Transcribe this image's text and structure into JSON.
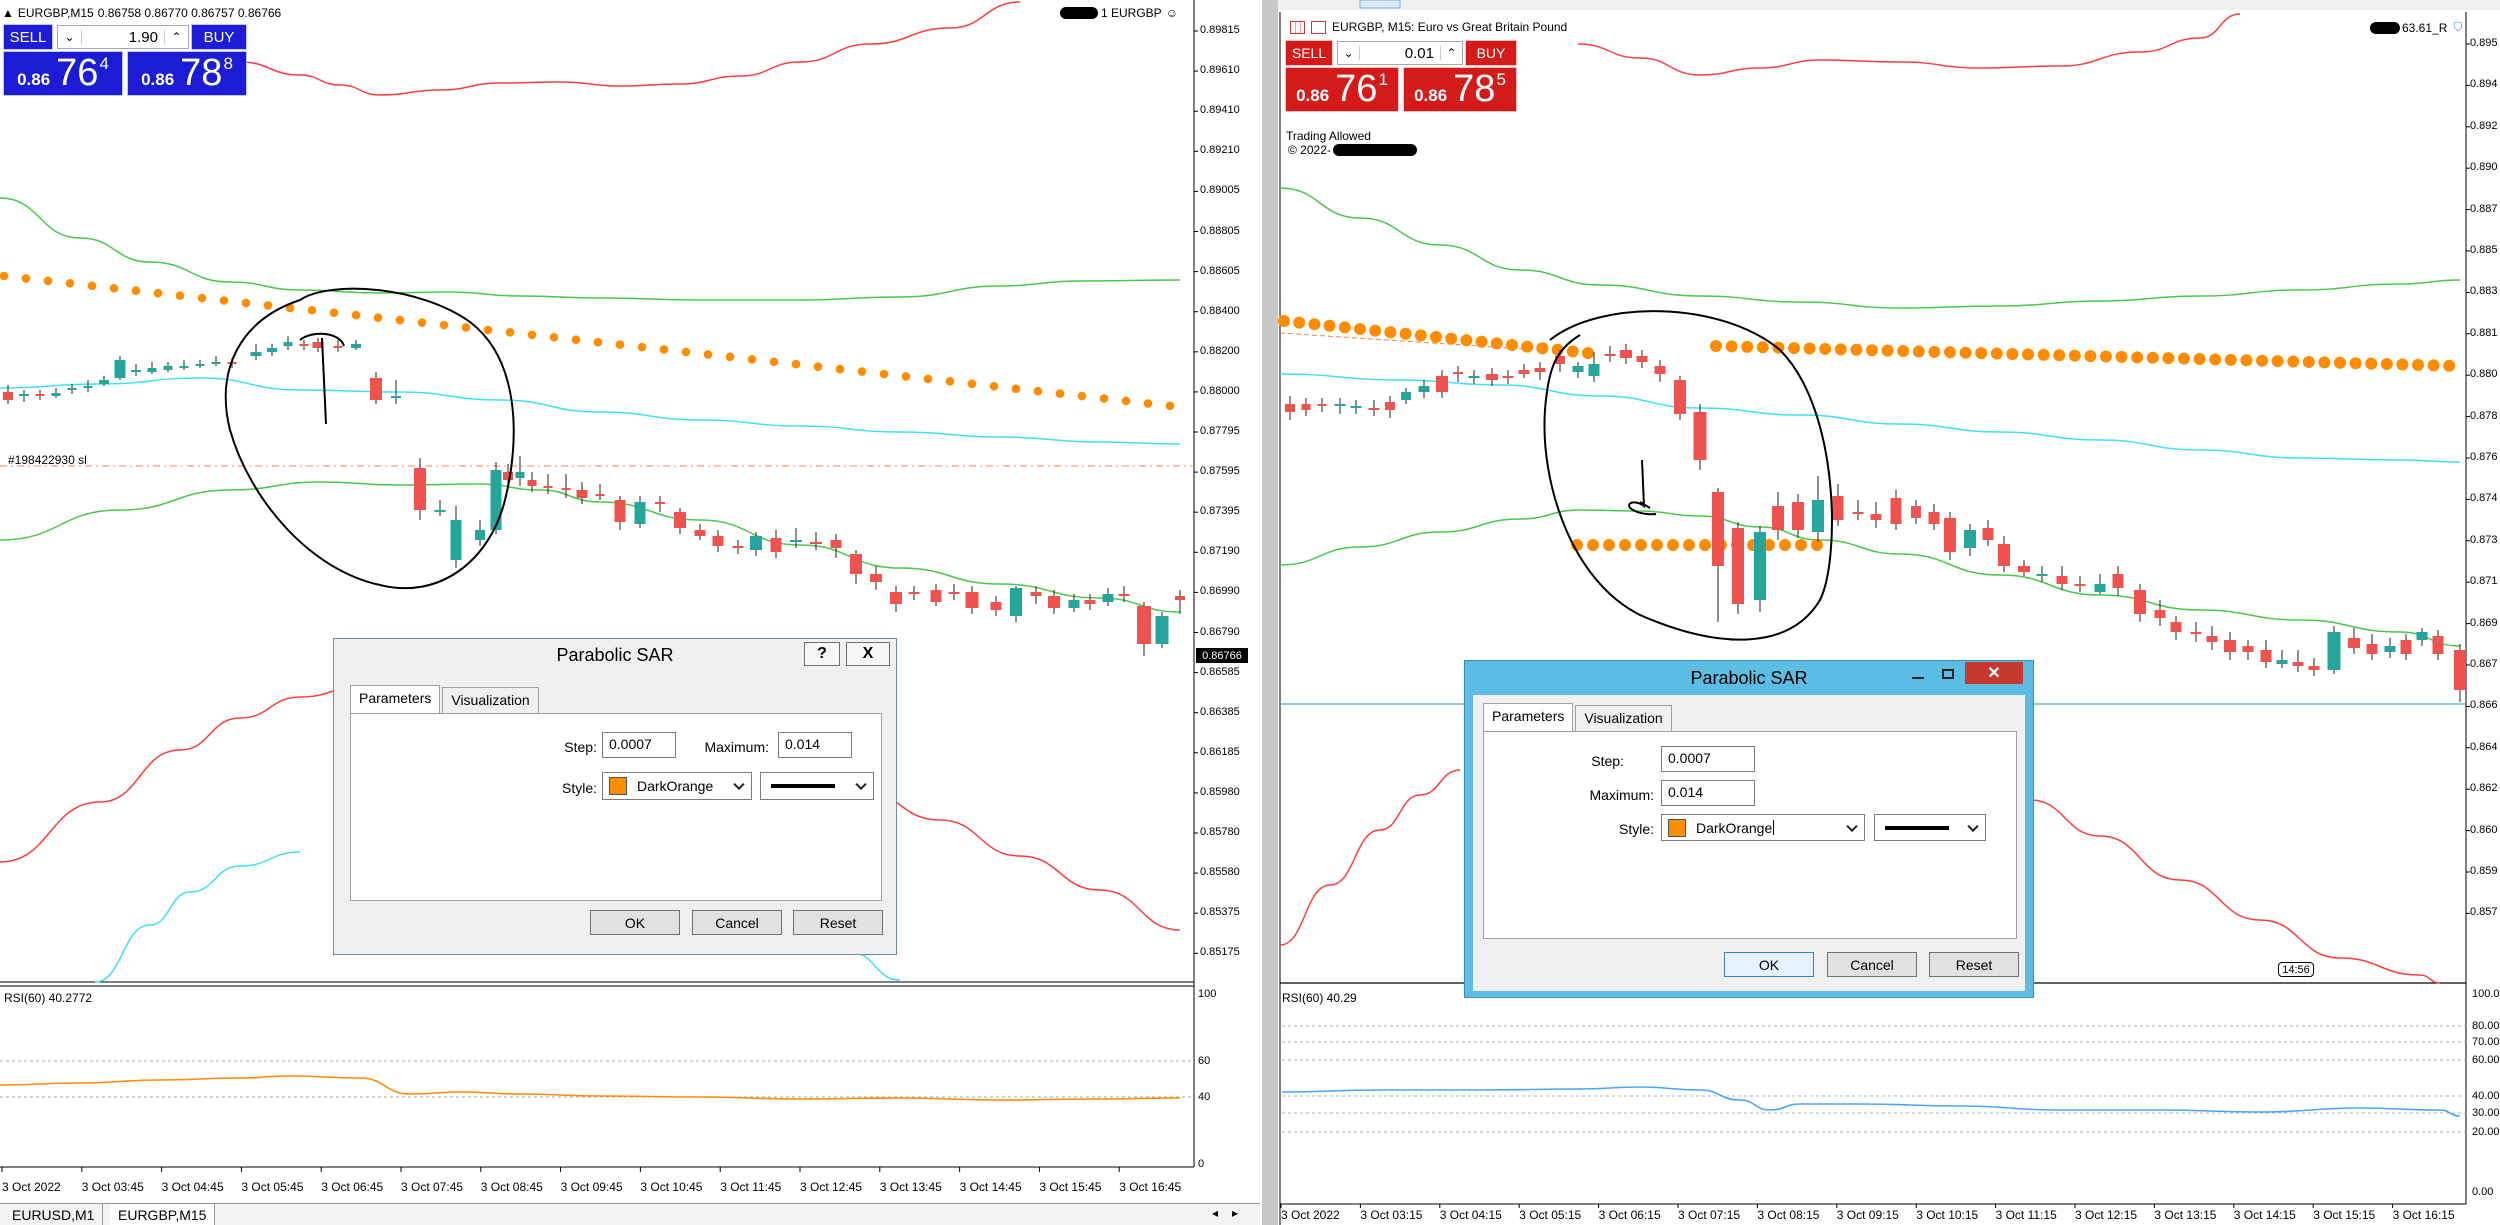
{
  "left": {
    "symbol": "EURGBP,M15",
    "ohlc": "0.86758 0.86770 0.86757 0.86766",
    "account_tag": "1 EURGBP",
    "trade_panel": {
      "sell_label": "SELL",
      "buy_label": "BUY",
      "lot": "1.90",
      "sell_price": {
        "small": "0.86",
        "big": "76",
        "pip": "4"
      },
      "buy_price": {
        "small": "0.86",
        "big": "78",
        "pip": "8"
      },
      "colors": {
        "button": "#1c1cd6"
      }
    },
    "order_label": "#198422930 sl",
    "current_price_label": "0.86766",
    "price_axis": [
      "0.89815",
      "0.89610",
      "0.89410",
      "0.89210",
      "0.89005",
      "0.88805",
      "0.88605",
      "0.88400",
      "0.88200",
      "0.88000",
      "0.87795",
      "0.87595",
      "0.87395",
      "0.87190",
      "0.86990",
      "0.86790",
      "0.86585",
      "0.86385",
      "0.86185",
      "0.85980",
      "0.85780",
      "0.85580",
      "0.85375",
      "0.85175"
    ],
    "indicator": {
      "label": "RSI(60) 40.2772",
      "levels": [
        "100",
        "60",
        "40",
        "0"
      ],
      "color": "#ff8c00"
    },
    "time_axis": [
      "3 Oct 2022",
      "3 Oct 03:45",
      "3 Oct 04:45",
      "3 Oct 05:45",
      "3 Oct 06:45",
      "3 Oct 07:45",
      "3 Oct 08:45",
      "3 Oct 09:45",
      "3 Oct 10:45",
      "3 Oct 11:45",
      "3 Oct 12:45",
      "3 Oct 13:45",
      "3 Oct 14:45",
      "3 Oct 15:45",
      "3 Oct 16:45"
    ],
    "dialog": {
      "title": "Parabolic SAR",
      "help": "?",
      "close": "X",
      "tabs": [
        "Parameters",
        "Visualization"
      ],
      "step_label": "Step:",
      "step_value": "0.0007",
      "maximum_label": "Maximum:",
      "maximum_value": "0.014",
      "style_label": "Style:",
      "style_color_name": "DarkOrange",
      "ok": "OK",
      "cancel": "Cancel",
      "reset": "Reset"
    },
    "bottom_tabs": [
      "EURUSD,M1",
      "EURGBP,M15"
    ]
  },
  "right": {
    "symbol": "EURGBP, M15:  Euro vs Great Britain Pound",
    "account_tag": "63.61_R",
    "trade_panel": {
      "sell_label": "SELL",
      "buy_label": "BUY",
      "lot": "0.01",
      "sell_price": {
        "small": "0.86",
        "big": "76",
        "pip": "1"
      },
      "buy_price": {
        "small": "0.86",
        "big": "78",
        "pip": "5"
      },
      "colors": {
        "button": "#d51a1a"
      }
    },
    "status_lines": [
      "Trading Allowed",
      "© 2022-"
    ],
    "price_axis": [
      "0.895",
      "0.894",
      "0.892",
      "0.890",
      "0.887",
      "0.885",
      "0.883",
      "0.881",
      "0.880",
      "0.878",
      "0.876",
      "0.874",
      "0.873",
      "0.871",
      "0.869",
      "0.867",
      "0.866",
      "0.864",
      "0.862",
      "0.860",
      "0.859",
      "0.857"
    ],
    "time_badge": "14:56",
    "indicator": {
      "label": "RSI(60) 40.29",
      "levels": [
        "100.00",
        "80.00",
        "70.00",
        "60.00",
        "40.00",
        "30.00",
        "20.00",
        "0.00"
      ],
      "color": "#4aa3ff"
    },
    "time_axis": [
      "3 Oct 2022",
      "3 Oct 03:15",
      "3 Oct 04:15",
      "3 Oct 05:15",
      "3 Oct 06:15",
      "3 Oct 07:15",
      "3 Oct 08:15",
      "3 Oct 09:15",
      "3 Oct 10:15",
      "3 Oct 11:15",
      "3 Oct 12:15",
      "3 Oct 13:15",
      "3 Oct 14:15",
      "3 Oct 15:15",
      "3 Oct 16:15"
    ],
    "dialog": {
      "title": "Parabolic SAR",
      "tabs": [
        "Parameters",
        "Visualization"
      ],
      "step_label": "Step:",
      "step_value": "0.0007",
      "maximum_label": "Maximum:",
      "maximum_value": "0.014",
      "style_label": "Style:",
      "style_color_name": "DarkOrange",
      "ok": "OK",
      "cancel": "Cancel",
      "reset": "Reset"
    }
  },
  "colors": {
    "bull": "#26a69a",
    "bear": "#ef5350",
    "sar": "#ff8c00",
    "band_upper": "#ff3b3b",
    "band_mid": "#48c848",
    "band_cyan": "#40e0f0",
    "dialog_left": "#f0f0f0",
    "dialog_right": "#5bbde4"
  }
}
